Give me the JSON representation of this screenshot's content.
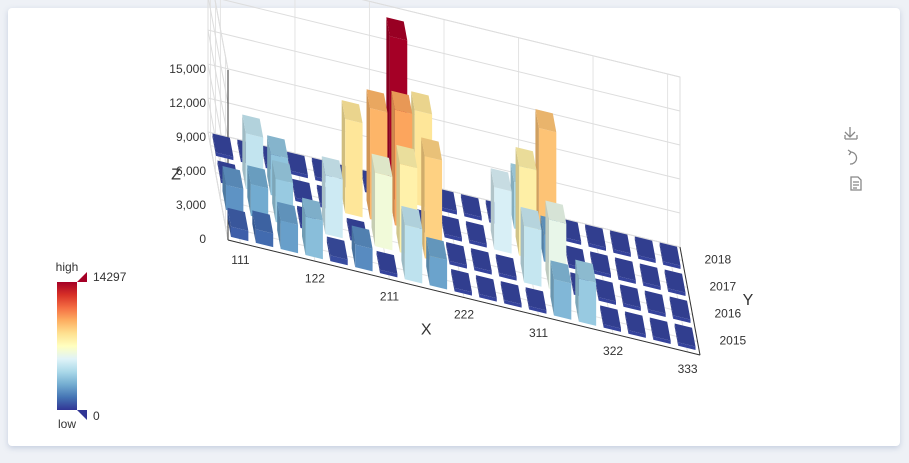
{
  "chart_data": {
    "type": "bar3d",
    "x_name": "X",
    "y_name": "Y",
    "z_name": "Z",
    "categories": [
      "111",
      null,
      null,
      "122",
      null,
      null,
      "211",
      null,
      null,
      "222",
      null,
      null,
      "311",
      null,
      null,
      "322",
      null,
      null,
      "333"
    ],
    "y_categories": [
      "2015",
      "2016",
      "2017",
      "2018"
    ],
    "values": [
      [
        900,
        1200,
        2500,
        3400,
        500,
        2000,
        300,
        4800,
        2600,
        300,
        300,
        300,
        300,
        3200,
        3800,
        300,
        300,
        300,
        300
      ],
      [
        2200,
        2800,
        3800,
        300,
        5200,
        300,
        6500,
        7800,
        9000,
        300,
        300,
        300,
        5000,
        6100,
        300,
        300,
        300,
        300,
        300
      ],
      [
        300,
        4900,
        3600,
        300,
        300,
        8300,
        9800,
        10200,
        300,
        300,
        300,
        5500,
        7900,
        2400,
        300,
        300,
        300,
        300,
        300
      ],
      [
        300,
        300,
        300,
        300,
        300,
        300,
        300,
        14297,
        8300,
        300,
        300,
        300,
        4100,
        9400,
        300,
        300,
        300,
        300,
        300
      ]
    ],
    "zlim": [
      0,
      15000
    ],
    "zticks": [
      0,
      {
        "value": 3000,
        "label": "3,000"
      },
      {
        "value": 6000,
        "label": "6,000"
      },
      {
        "value": 9000,
        "label": "9,000"
      },
      {
        "value": 12000,
        "label": "12,000"
      },
      {
        "value": 15000,
        "label": "15,000"
      }
    ],
    "grid": true,
    "visual_map": {
      "min": 0,
      "max": 14297,
      "text": [
        "high",
        "low"
      ],
      "colors": [
        "#313695",
        "#4575b4",
        "#74add1",
        "#abd9e9",
        "#e0f3f8",
        "#ffffbf",
        "#fee090",
        "#fdae61",
        "#f46d43",
        "#d73027",
        "#a50026"
      ]
    }
  }
}
